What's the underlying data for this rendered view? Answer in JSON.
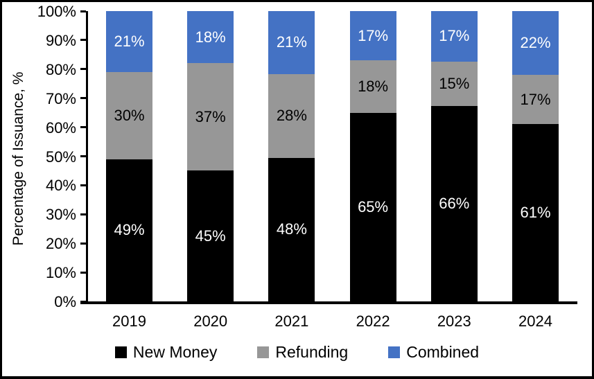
{
  "figure": {
    "background_color": "#ffffff",
    "border_color": "#000000"
  },
  "chart_data": {
    "type": "bar",
    "stacked": true,
    "title": "",
    "xlabel": "",
    "ylabel": "Percentage of Issuance, %",
    "categories": [
      "2019",
      "2020",
      "2021",
      "2022",
      "2023",
      "2024"
    ],
    "series": [
      {
        "name": "New Money",
        "color": "#000000",
        "label_color": "#ffffff",
        "values": [
          49,
          45,
          48,
          65,
          66,
          61
        ],
        "labels": [
          "49%",
          "45%",
          "48%",
          "65%",
          "66%",
          "61%"
        ]
      },
      {
        "name": "Refunding",
        "color": "#979797",
        "label_color": "#000000",
        "values": [
          30,
          37,
          28,
          18,
          15,
          17
        ],
        "labels": [
          "30%",
          "37%",
          "28%",
          "18%",
          "15%",
          "17%"
        ]
      },
      {
        "name": "Combined",
        "color": "#4472C4",
        "label_color": "#ffffff",
        "values": [
          21,
          18,
          21,
          17,
          17,
          22
        ],
        "labels": [
          "21%",
          "18%",
          "21%",
          "17%",
          "17%",
          "22%"
        ]
      }
    ],
    "y_axis": {
      "min": 0,
      "max": 100,
      "tick_step": 10,
      "tick_labels": [
        "0%",
        "10%",
        "20%",
        "30%",
        "40%",
        "50%",
        "60%",
        "70%",
        "80%",
        "90%",
        "100%"
      ]
    },
    "legend": {
      "position": "bottom",
      "items": [
        "New Money",
        "Refunding",
        "Combined"
      ]
    },
    "grid": false
  }
}
